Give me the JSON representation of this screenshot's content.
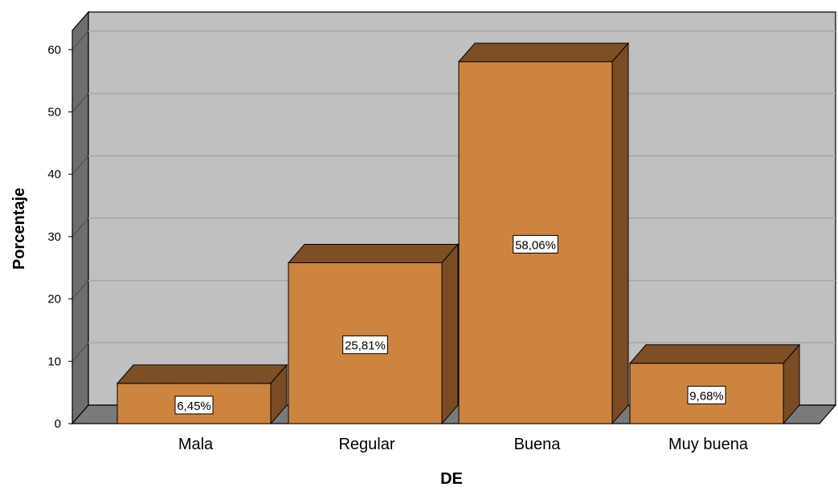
{
  "chart_data": {
    "type": "bar",
    "style": "3d",
    "xlabel": "DE",
    "ylabel": "Porcentaje",
    "categories": [
      "Mala",
      "Regular",
      "Buena",
      "Muy buena"
    ],
    "values": [
      6.45,
      25.81,
      58.06,
      9.68
    ],
    "data_labels": [
      "6,45%",
      "25,81%",
      "58,06%",
      "9,68%"
    ],
    "ylim": [
      0,
      60
    ],
    "yticks": [
      0,
      10,
      20,
      30,
      40,
      50,
      60
    ],
    "grid": true,
    "legend": "none",
    "colors": {
      "bar_front": "#cc843e",
      "bar_top": "#7d4f25",
      "bar_side": "#7b4c24",
      "wall": "#c0c0c0",
      "wall_side": "#6e6e6e",
      "floor": "#7a7a7a",
      "gridline": "#a8a8a8"
    }
  }
}
